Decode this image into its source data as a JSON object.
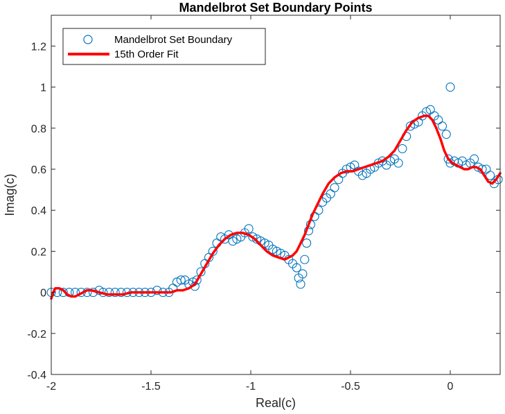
{
  "chart_data": {
    "type": "scatter",
    "title": "Mandelbrot Set Boundary Points",
    "xlabel": "Real(c)",
    "ylabel": "Imag(c)",
    "xlim": [
      -2,
      0.25
    ],
    "ylim": [
      -0.4,
      1.35
    ],
    "xticks": [
      -2,
      -1.5,
      -1,
      -0.5,
      0
    ],
    "xtick_labels": [
      "-2",
      "-1.5",
      "-1",
      "-0.5",
      "0"
    ],
    "yticks": [
      -0.4,
      -0.2,
      0,
      0.2,
      0.4,
      0.6,
      0.8,
      1,
      1.2
    ],
    "ytick_labels": [
      "-0.4",
      "-0.2",
      "0",
      "0.2",
      "0.4",
      "0.6",
      "0.8",
      "1",
      "1.2"
    ],
    "grid": false,
    "legend_position": "top-left",
    "colors": {
      "scatter": "#0072BD",
      "fit": "#FF0000"
    },
    "series": [
      {
        "name": "Mandelbrot Set Boundary",
        "type": "scatter",
        "marker": "open-circle",
        "x": [
          -2.0,
          -1.97,
          -1.94,
          -1.91,
          -1.88,
          -1.85,
          -1.82,
          -1.79,
          -1.76,
          -1.74,
          -1.71,
          -1.68,
          -1.65,
          -1.62,
          -1.59,
          -1.56,
          -1.53,
          -1.5,
          -1.47,
          -1.44,
          -1.41,
          -1.39,
          -1.37,
          -1.35,
          -1.33,
          -1.31,
          -1.29,
          -1.28,
          -1.27,
          -1.25,
          -1.23,
          -1.21,
          -1.19,
          -1.17,
          -1.15,
          -1.13,
          -1.11,
          -1.09,
          -1.07,
          -1.05,
          -1.03,
          -1.01,
          -0.99,
          -0.97,
          -0.95,
          -0.93,
          -0.91,
          -0.89,
          -0.87,
          -0.85,
          -0.83,
          -0.81,
          -0.79,
          -0.77,
          -0.76,
          -0.75,
          -0.74,
          -0.73,
          -0.72,
          -0.71,
          -0.7,
          -0.68,
          -0.66,
          -0.64,
          -0.62,
          -0.6,
          -0.58,
          -0.56,
          -0.54,
          -0.52,
          -0.5,
          -0.48,
          -0.46,
          -0.44,
          -0.42,
          -0.4,
          -0.38,
          -0.36,
          -0.34,
          -0.32,
          -0.3,
          -0.28,
          -0.26,
          -0.24,
          -0.22,
          -0.2,
          -0.18,
          -0.16,
          -0.14,
          -0.12,
          -0.1,
          -0.08,
          -0.06,
          -0.04,
          -0.02,
          -0.01,
          0.0,
          0.02,
          0.04,
          0.06,
          0.08,
          0.1,
          0.12,
          0.14,
          0.16,
          0.18,
          0.2,
          0.22,
          0.24,
          0.0
        ],
        "y": [
          0.0,
          0.0,
          0.0,
          0.0,
          0.0,
          0.0,
          0.0,
          0.0,
          0.01,
          0.0,
          0.0,
          0.0,
          0.0,
          0.0,
          0.0,
          0.0,
          0.0,
          0.0,
          0.01,
          0.0,
          0.0,
          0.02,
          0.05,
          0.06,
          0.06,
          0.04,
          0.05,
          0.03,
          0.06,
          0.1,
          0.14,
          0.17,
          0.2,
          0.24,
          0.27,
          0.26,
          0.28,
          0.25,
          0.26,
          0.27,
          0.29,
          0.31,
          0.27,
          0.26,
          0.25,
          0.24,
          0.23,
          0.21,
          0.2,
          0.19,
          0.18,
          0.16,
          0.14,
          0.12,
          0.07,
          0.04,
          0.09,
          0.16,
          0.24,
          0.3,
          0.33,
          0.37,
          0.4,
          0.44,
          0.46,
          0.48,
          0.51,
          0.55,
          0.58,
          0.6,
          0.61,
          0.62,
          0.59,
          0.57,
          0.58,
          0.6,
          0.61,
          0.63,
          0.64,
          0.62,
          0.64,
          0.65,
          0.63,
          0.7,
          0.76,
          0.81,
          0.82,
          0.83,
          0.86,
          0.88,
          0.89,
          0.86,
          0.84,
          0.81,
          0.77,
          0.65,
          0.63,
          0.64,
          0.63,
          0.64,
          0.62,
          0.63,
          0.65,
          0.61,
          0.6,
          0.6,
          0.57,
          0.53,
          0.55,
          1.0
        ]
      },
      {
        "name": "15th Order Fit",
        "type": "line",
        "x": [
          -2.0,
          -1.99,
          -1.98,
          -1.96,
          -1.94,
          -1.92,
          -1.9,
          -1.88,
          -1.86,
          -1.84,
          -1.82,
          -1.8,
          -1.76,
          -1.72,
          -1.68,
          -1.64,
          -1.6,
          -1.56,
          -1.52,
          -1.48,
          -1.44,
          -1.4,
          -1.37,
          -1.34,
          -1.31,
          -1.28,
          -1.25,
          -1.22,
          -1.19,
          -1.16,
          -1.13,
          -1.1,
          -1.07,
          -1.04,
          -1.01,
          -0.98,
          -0.95,
          -0.92,
          -0.89,
          -0.86,
          -0.83,
          -0.81,
          -0.79,
          -0.77,
          -0.75,
          -0.73,
          -0.71,
          -0.69,
          -0.67,
          -0.64,
          -0.61,
          -0.58,
          -0.55,
          -0.52,
          -0.49,
          -0.46,
          -0.43,
          -0.4,
          -0.37,
          -0.34,
          -0.31,
          -0.28,
          -0.25,
          -0.22,
          -0.19,
          -0.16,
          -0.13,
          -0.11,
          -0.09,
          -0.07,
          -0.05,
          -0.03,
          -0.01,
          0.01,
          0.03,
          0.05,
          0.07,
          0.09,
          0.11,
          0.13,
          0.15,
          0.17,
          0.19,
          0.21,
          0.23,
          0.25
        ],
        "y": [
          -0.03,
          0.0,
          0.02,
          0.02,
          0.01,
          -0.01,
          -0.02,
          -0.02,
          -0.01,
          0.0,
          0.01,
          0.01,
          0.0,
          -0.01,
          -0.01,
          -0.01,
          0.0,
          0.0,
          0.0,
          0.0,
          0.0,
          0.0,
          0.01,
          0.01,
          0.02,
          0.04,
          0.09,
          0.14,
          0.19,
          0.23,
          0.26,
          0.28,
          0.29,
          0.29,
          0.28,
          0.26,
          0.23,
          0.2,
          0.18,
          0.17,
          0.16,
          0.17,
          0.18,
          0.2,
          0.24,
          0.28,
          0.33,
          0.38,
          0.42,
          0.48,
          0.53,
          0.56,
          0.58,
          0.59,
          0.59,
          0.6,
          0.61,
          0.62,
          0.63,
          0.64,
          0.66,
          0.69,
          0.74,
          0.79,
          0.83,
          0.85,
          0.86,
          0.86,
          0.84,
          0.8,
          0.75,
          0.69,
          0.65,
          0.63,
          0.62,
          0.61,
          0.6,
          0.6,
          0.61,
          0.61,
          0.6,
          0.57,
          0.54,
          0.53,
          0.55,
          0.58
        ]
      }
    ]
  }
}
